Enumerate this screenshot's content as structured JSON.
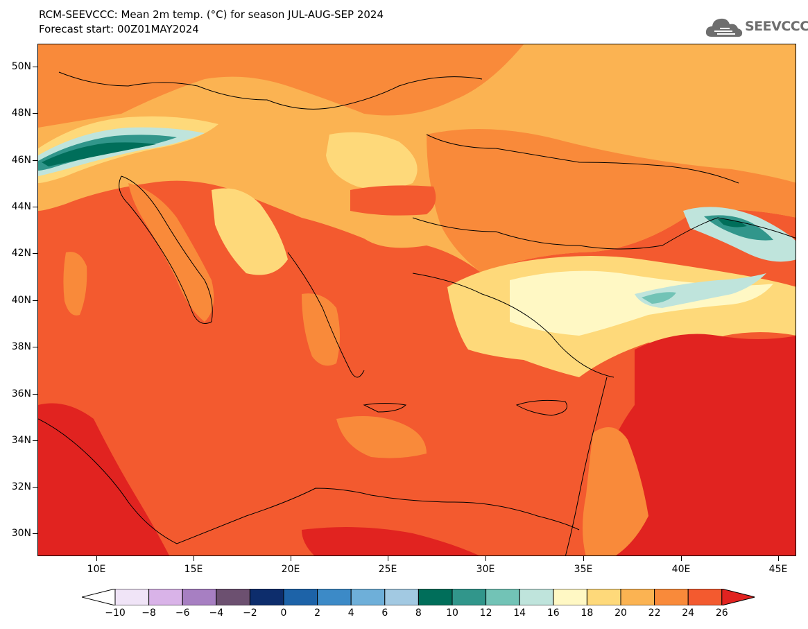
{
  "header": {
    "title_line1": "RCM-SEEVCCC: Mean 2m temp. (°C) for season JUL-AUG-SEP 2024",
    "title_line2": "Forecast start: 00Z01MAY2024"
  },
  "logo": {
    "icon": "cloud-icon",
    "text": "SEEVCCC"
  },
  "map": {
    "lat_labels": [
      "50N",
      "48N",
      "46N",
      "44N",
      "42N",
      "40N",
      "38N",
      "36N",
      "34N",
      "32N",
      "30N"
    ],
    "lon_labels": [
      "10E",
      "15E",
      "20E",
      "25E",
      "30E",
      "35E",
      "40E",
      "45E"
    ]
  },
  "colorbar": {
    "labels": [
      "−10",
      "−8",
      "−6",
      "−4",
      "−2",
      "0",
      "2",
      "4",
      "6",
      "8",
      "10",
      "12",
      "14",
      "16",
      "18",
      "20",
      "22",
      "24",
      "26"
    ],
    "colors": [
      "#f0e4f7",
      "#d9b3e8",
      "#a77fc2",
      "#6c5070",
      "#0d2d6c",
      "#1d63a8",
      "#3c8ac7",
      "#6eafd9",
      "#a2c9e2",
      "#006e5a",
      "#31968b",
      "#72c3b6",
      "#bfe4dc",
      "#fff8c4",
      "#fed97a",
      "#fbb352",
      "#f98a3a",
      "#f35a2f"
    ],
    "under_color": "#ffffff",
    "over_color": "#e12320"
  }
}
